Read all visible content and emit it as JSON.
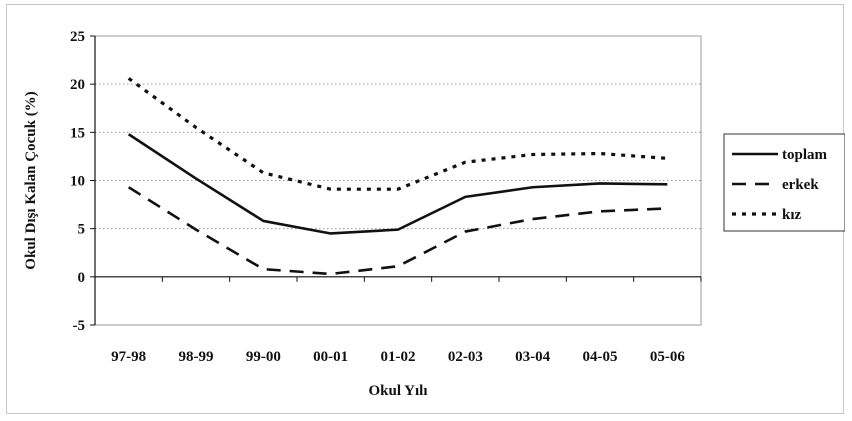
{
  "chart_data": {
    "type": "line",
    "title": "",
    "xlabel": "Okul Yılı",
    "ylabel": "Okul Dışı Kalan Çocuk (%)",
    "categories": [
      "97-98",
      "98-99",
      "99-00",
      "00-01",
      "01-02",
      "02-03",
      "03-04",
      "04-05",
      "05-06"
    ],
    "ylim": [
      -5,
      25
    ],
    "yticks": [
      -5,
      0,
      5,
      10,
      15,
      20,
      25
    ],
    "grid": "horizontal dotted",
    "legend_position": "right",
    "series": [
      {
        "name": "toplam",
        "style": "solid",
        "color": "#111111",
        "values": [
          14.8,
          10.2,
          5.8,
          4.5,
          4.9,
          8.3,
          9.3,
          9.7,
          9.6
        ]
      },
      {
        "name": "erkek",
        "style": "dashed",
        "color": "#111111",
        "values": [
          9.3,
          4.9,
          0.8,
          0.3,
          1.1,
          4.7,
          6.0,
          6.8,
          7.1
        ]
      },
      {
        "name": "kız",
        "style": "dotted",
        "color": "#111111",
        "values": [
          20.6,
          15.5,
          10.8,
          9.1,
          9.1,
          11.9,
          12.7,
          12.8,
          12.3
        ]
      }
    ]
  }
}
